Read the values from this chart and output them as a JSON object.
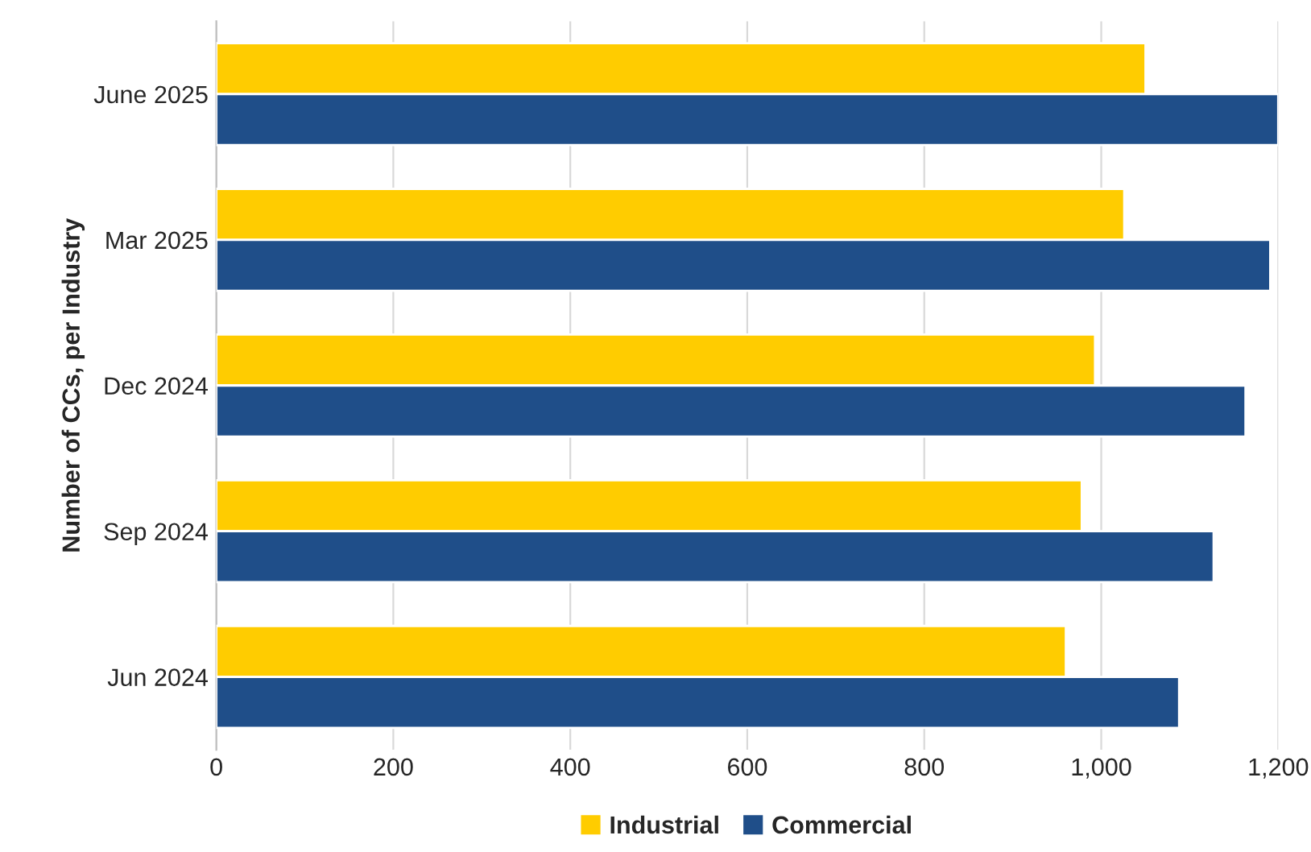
{
  "chart_data": {
    "type": "bar",
    "orientation": "horizontal",
    "ylabel": "Number of CCs, per Industry",
    "categories": [
      "June 2025",
      "Mar 2025",
      "Dec 2024",
      "Sep 2024",
      "Jun 2024"
    ],
    "series": [
      {
        "name": "Industrial",
        "color": "#ffcc00",
        "values": [
          1050,
          1026,
          993,
          978,
          960
        ]
      },
      {
        "name": "Commercial",
        "color": "#1f4e89",
        "values": [
          1200,
          1191,
          1163,
          1127,
          1088
        ]
      }
    ],
    "xlim": [
      0,
      1200
    ],
    "xticks": [
      0,
      200,
      400,
      600,
      800,
      {
        "value": 1000,
        "label": "1,000"
      },
      {
        "value": 1200,
        "label": "1,200"
      }
    ],
    "grid": "x",
    "legend": "bottom"
  }
}
